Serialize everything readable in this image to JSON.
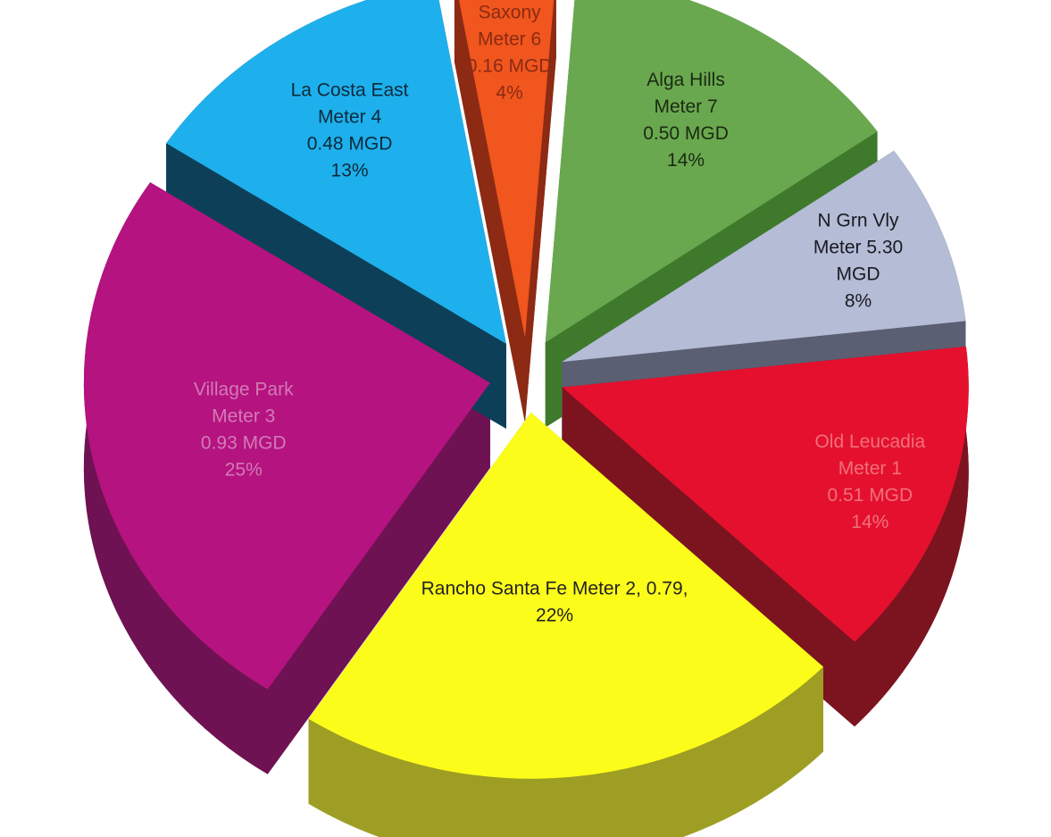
{
  "chart_data": {
    "type": "pie",
    "style": "3d-exploded",
    "slices": [
      {
        "name": "Saxony",
        "meter": "Meter 6",
        "value": 0.16,
        "unit": "MGD",
        "percent": 4,
        "label_lines": [
          "Saxony",
          "Meter 6",
          "0.16 MGD",
          "4%"
        ],
        "color": "#F0561D",
        "side_color": "#8C2A14",
        "text_color": "#8C2A14"
      },
      {
        "name": "Alga Hills",
        "meter": "Meter 7",
        "value": 0.5,
        "unit": "MGD",
        "percent": 14,
        "label_lines": [
          "Alga Hills",
          "Meter 7",
          "0.50 MGD",
          "14%"
        ],
        "color": "#6AA84F",
        "side_color": "#3F7A2C",
        "text_color": "#1a2a12"
      },
      {
        "name": "N Grn Vly",
        "meter": "Meter 5",
        "value": 0.3,
        "unit": "MGD",
        "percent": 8,
        "label_lines": [
          "N Grn Vly",
          "Meter 5.30",
          "MGD",
          "8%"
        ],
        "color": "#B4BCD6",
        "side_color": "#5B5F72",
        "text_color": "#1a1a22"
      },
      {
        "name": "Old Leucadia",
        "meter": "Meter 1",
        "value": 0.51,
        "unit": "MGD",
        "percent": 14,
        "label_lines": [
          "Old Leucadia",
          "Meter 1",
          "0.51 MGD",
          "14%"
        ],
        "color": "#E5102E",
        "side_color": "#7C1420",
        "text_color": "#F0707A"
      },
      {
        "name": "Rancho Santa Fe",
        "meter": "Meter 2",
        "value": 0.79,
        "unit": "",
        "percent": 22,
        "label_lines": [
          "Rancho Santa Fe Meter 2, 0.79,",
          "22%"
        ],
        "color": "#FCFC1A",
        "side_color": "#9E9E24",
        "text_color": "#222222"
      },
      {
        "name": "Village Park",
        "meter": "Meter 3",
        "value": 0.93,
        "unit": "MGD",
        "percent": 25,
        "label_lines": [
          "Village Park",
          "Meter 3",
          "0.93 MGD",
          "25%"
        ],
        "color": "#B5137F",
        "side_color": "#6E1253",
        "text_color": "#D27AB8"
      },
      {
        "name": "La Costa East",
        "meter": "Meter 4",
        "value": 0.48,
        "unit": "MGD",
        "percent": 13,
        "label_lines": [
          "La Costa East",
          "Meter 4",
          "0.48 MGD",
          "13%"
        ],
        "color": "#1EB0EC",
        "side_color": "#0D3F58",
        "text_color": "#0b2a3c"
      }
    ]
  }
}
